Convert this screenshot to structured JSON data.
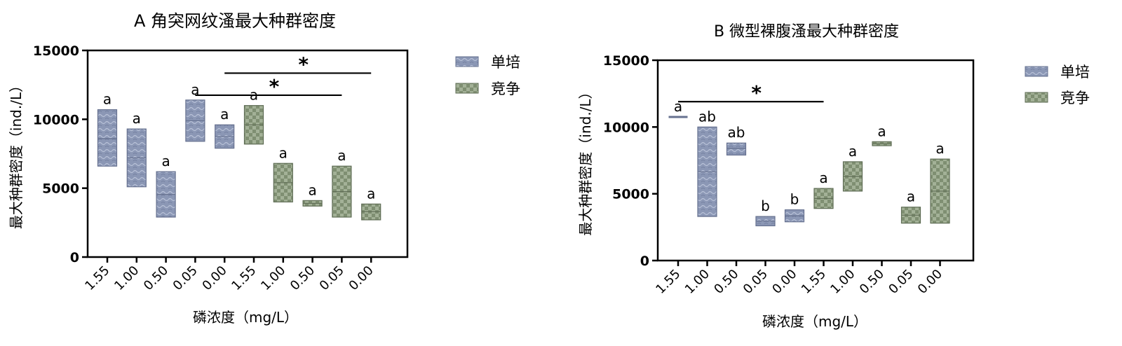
{
  "chart_data": [
    {
      "type": "floating-bar",
      "title": "A 角突网纹溞最大种群密度",
      "ylabel": "最大种群密度（ind./L）",
      "xlabel": "磷浓度（mg/L）",
      "ylim": [
        0,
        15000
      ],
      "yticks": [
        "0",
        "5000",
        "10000",
        "15000"
      ],
      "categories": [
        "1.55",
        "1.00",
        "0.50",
        "0.05",
        "0.00",
        "1.55",
        "1.00",
        "0.50",
        "0.05",
        "0.00"
      ],
      "legend": {
        "placement": "right",
        "entries": [
          "单培",
          "竞争"
        ]
      },
      "series": [
        {
          "name": "单培",
          "color": "#8b97b5",
          "bars": [
            {
              "category_index": 0,
              "low": 6600,
              "high": 10700,
              "mean": 8600,
              "label": "a"
            },
            {
              "category_index": 1,
              "low": 5100,
              "high": 9300,
              "mean": 7200,
              "label": "a"
            },
            {
              "category_index": 2,
              "low": 2900,
              "high": 6200,
              "mean": 4550,
              "label": "a"
            },
            {
              "category_index": 3,
              "low": 8400,
              "high": 11400,
              "mean": 9900,
              "label": "a"
            },
            {
              "category_index": 4,
              "low": 7900,
              "high": 9600,
              "mean": 8750,
              "label": "a"
            }
          ]
        },
        {
          "name": "竞争",
          "color": "#7f8f72",
          "bars": [
            {
              "category_index": 5,
              "low": 8200,
              "high": 11000,
              "mean": 9600,
              "label": "a"
            },
            {
              "category_index": 6,
              "low": 4000,
              "high": 6800,
              "mean": 5400,
              "label": "a"
            },
            {
              "category_index": 7,
              "low": 3700,
              "high": 4100,
              "mean": 3900,
              "label": "a"
            },
            {
              "category_index": 8,
              "low": 2900,
              "high": 6600,
              "mean": 4750,
              "label": "a"
            },
            {
              "category_index": 9,
              "low": 2700,
              "high": 3850,
              "mean": 3300,
              "label": "a"
            }
          ]
        }
      ],
      "significance": [
        {
          "from": 4,
          "to": 9,
          "y": 13350,
          "label": "*"
        },
        {
          "from": 3,
          "to": 8,
          "y": 11750,
          "label": "*"
        }
      ]
    },
    {
      "type": "floating-bar",
      "title": "B 微型裸腹溞最大种群密度",
      "ylabel": "最大种群密度（ind./L）",
      "xlabel": "磷浓度（mg/L）",
      "ylim": [
        0,
        15000
      ],
      "yticks": [
        "0",
        "5000",
        "10000",
        "15000"
      ],
      "categories": [
        "1.55",
        "1.00",
        "0.50",
        "0.05",
        "0.00",
        "1.55",
        "1.00",
        "0.50",
        "0.05",
        "0.00"
      ],
      "legend": {
        "placement": "right",
        "entries": [
          "单培",
          "竞争"
        ]
      },
      "series": [
        {
          "name": "单培",
          "color": "#8b97b5",
          "bars": [
            {
              "category_index": 0,
              "low": 10750,
              "high": 10750,
              "mean": 10750,
              "label": "a"
            },
            {
              "category_index": 1,
              "low": 3300,
              "high": 10000,
              "mean": 6650,
              "label": "ab"
            },
            {
              "category_index": 2,
              "low": 7900,
              "high": 8800,
              "mean": 8400,
              "label": "ab"
            },
            {
              "category_index": 3,
              "low": 2600,
              "high": 3300,
              "mean": 2950,
              "label": "b"
            },
            {
              "category_index": 4,
              "low": 2900,
              "high": 3800,
              "mean": 3350,
              "label": "b"
            }
          ]
        },
        {
          "name": "竞争",
          "color": "#7f8f72",
          "bars": [
            {
              "category_index": 5,
              "low": 3900,
              "high": 5400,
              "mean": 4650,
              "label": "a"
            },
            {
              "category_index": 6,
              "low": 5200,
              "high": 7400,
              "mean": 6300,
              "label": "a"
            },
            {
              "category_index": 7,
              "low": 8600,
              "high": 8900,
              "mean": 8750,
              "label": "a"
            },
            {
              "category_index": 8,
              "low": 2800,
              "high": 4000,
              "mean": 3400,
              "label": "a"
            },
            {
              "category_index": 9,
              "low": 2800,
              "high": 7600,
              "mean": 5200,
              "label": "a"
            }
          ]
        }
      ],
      "significance": [
        {
          "from": 0,
          "to": 5,
          "y": 11900,
          "label": "*"
        }
      ]
    }
  ]
}
